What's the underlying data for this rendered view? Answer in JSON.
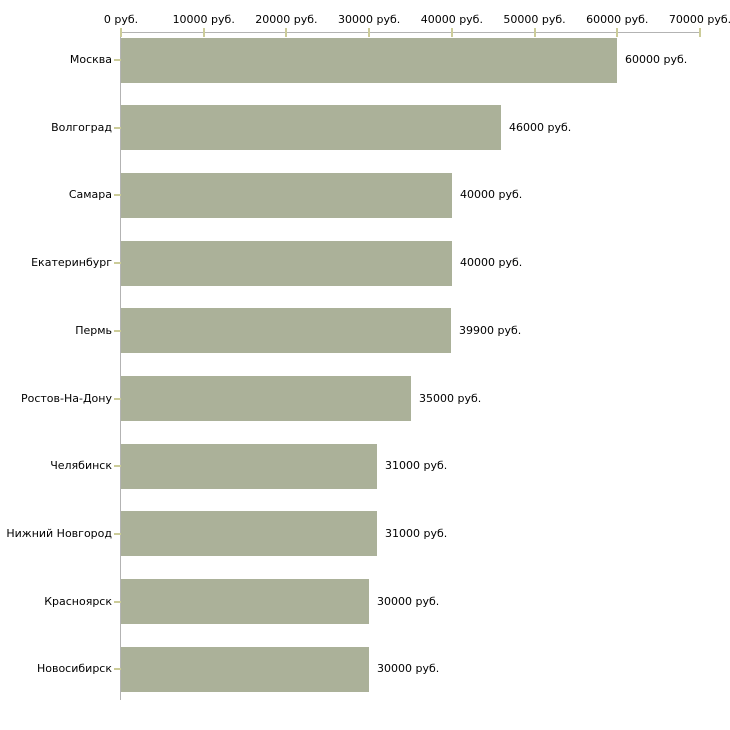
{
  "page": {
    "background_color": "#ffffff",
    "text_color": "#000000"
  },
  "chart_data": {
    "type": "bar",
    "orientation": "horizontal",
    "categories": [
      "Москва",
      "Волгоград",
      "Самара",
      "Екатеринбург",
      "Пермь",
      "Ростов-На-Дону",
      "Челябинск",
      "Нижний Новгород",
      "Красноярск",
      "Новосибирск"
    ],
    "values": [
      60000,
      46000,
      40000,
      40000,
      39900,
      35000,
      31000,
      31000,
      30000,
      30000
    ],
    "value_labels": [
      "60000 руб.",
      "46000 руб.",
      "40000 руб.",
      "40000 руб.",
      "39900 руб.",
      "35000 руб.",
      "31000 руб.",
      "31000 руб.",
      "30000 руб.",
      "30000 руб."
    ],
    "x_tick_values": [
      0,
      10000,
      20000,
      30000,
      40000,
      50000,
      60000,
      70000
    ],
    "x_tick_labels": [
      "0 руб.",
      "10000 руб.",
      "20000 руб.",
      "30000 руб.",
      "40000 руб.",
      "50000 руб.",
      "60000 руб.",
      "70000 руб."
    ],
    "xlim": [
      0,
      70000
    ],
    "grid": false,
    "legend": false,
    "bar_color": "#abb199",
    "tick_mark_color": "#cccc99",
    "axis_line_color": "#b3b3b3"
  }
}
